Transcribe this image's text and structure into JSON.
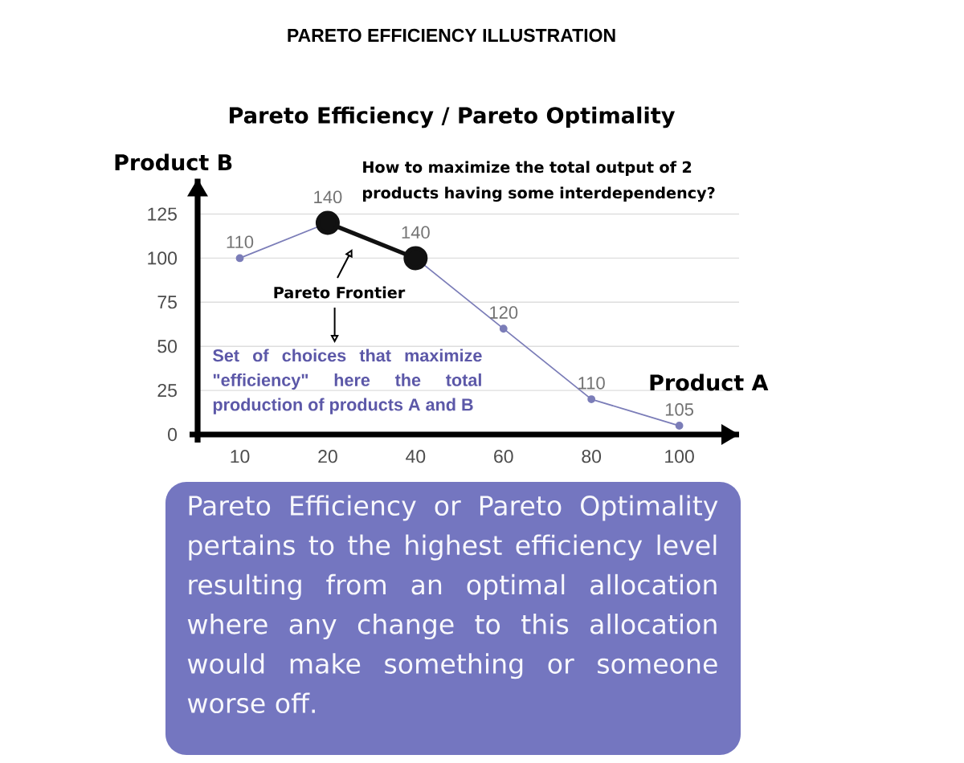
{
  "chart_data": {
    "type": "line",
    "title": "PARETO EFFICIENCY ILLUSTRATION",
    "subtitle": "Pareto Efficiency / Pareto Optimality",
    "xlabel": "Product A",
    "ylabel": "Product B",
    "categories": [
      "10",
      "20",
      "40",
      "60",
      "80",
      "100"
    ],
    "series": [
      {
        "color": "#7b7db8",
        "x": [
          "10",
          "20"
        ],
        "values": [
          100,
          120
        ]
      },
      {
        "color": "#111111",
        "x": [
          "20",
          "40"
        ],
        "values": [
          120,
          100
        ]
      },
      {
        "color": "#7b7db8",
        "x": [
          "40",
          "60",
          "80",
          "100"
        ],
        "values": [
          100,
          60,
          20,
          5
        ]
      }
    ],
    "ylim": [
      0,
      145
    ],
    "yticks": [
      0,
      25,
      50,
      75,
      100,
      125
    ],
    "grid": "y",
    "marker": "circle",
    "line_style": "solid",
    "annotations": [
      "How to maximize the total output of 2 products having some interdependency?",
      "Pareto Frontier",
      "Set of choices that maximize \"efficiency\" here the total production of products A and B",
      "Pareto Efficiency or Pareto Optimality pertains to the highest efficiency level resulting from an optimal allocation where any change to this allocation would make something or someone worse off.",
      {
        "text": "110",
        "x": "10",
        "y": 100
      },
      {
        "text": "140",
        "x": "20",
        "y": 120
      },
      {
        "text": "140",
        "x": "40",
        "y": 100
      },
      {
        "text": "120",
        "x": "60",
        "y": 60
      },
      {
        "text": "110",
        "x": "80",
        "y": 20
      },
      {
        "text": "105",
        "x": "100",
        "y": 5
      }
    ]
  }
}
